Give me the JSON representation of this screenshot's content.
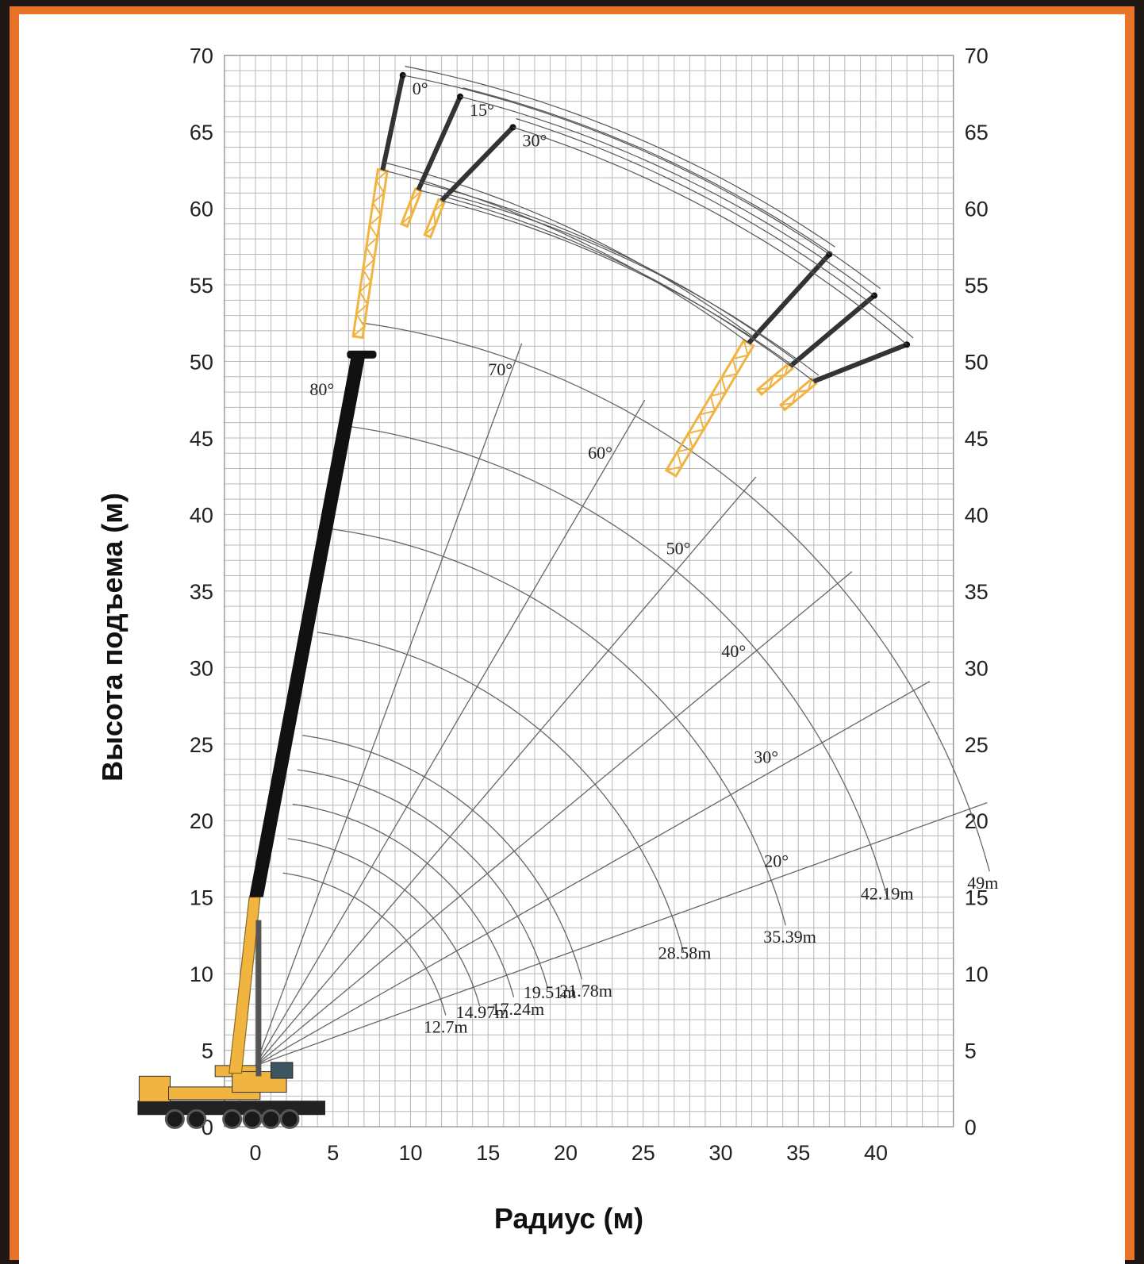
{
  "chart_data": {
    "type": "line",
    "title": "",
    "xlabel": "Радиус (м)",
    "ylabel": "Высота подъема (м)",
    "xlim": [
      -2,
      45
    ],
    "ylim": [
      0,
      70
    ],
    "x_ticks": [
      "0",
      "5",
      "10",
      "15",
      "20",
      "25",
      "30",
      "35",
      "40"
    ],
    "y_ticks": [
      "0",
      "5",
      "10",
      "15",
      "20",
      "25",
      "30",
      "35",
      "40",
      "45",
      "50",
      "55",
      "60",
      "65",
      "70"
    ],
    "grid": true,
    "pivot": [
      0,
      4
    ],
    "boom_lengths": [
      {
        "label": "12.7m",
        "length": 12.7
      },
      {
        "label": "14.97m",
        "length": 14.97
      },
      {
        "label": "17.24m",
        "length": 17.24
      },
      {
        "label": "19.51m",
        "length": 19.51
      },
      {
        "label": "21.78m",
        "length": 21.78
      },
      {
        "label": "28.58m",
        "length": 28.58
      },
      {
        "label": "35.39m",
        "length": 35.39
      },
      {
        "label": "42.19m",
        "length": 42.19
      },
      {
        "label": "49m",
        "length": 49
      }
    ],
    "boom_angles": [
      {
        "label": "20°",
        "deg": 20
      },
      {
        "label": "30°",
        "deg": 30
      },
      {
        "label": "40°",
        "deg": 40
      },
      {
        "label": "50°",
        "deg": 50
      },
      {
        "label": "60°",
        "deg": 60
      },
      {
        "label": "70°",
        "deg": 70
      },
      {
        "label": "80°",
        "deg": 80
      }
    ],
    "main_boom_tip": [
      6.5,
      50.5
    ],
    "jib_base_high": [
      8.2,
      62.5
    ],
    "jib_base_low": [
      31.8,
      51.2
    ],
    "jib_offset_angles": [
      {
        "label": "0°",
        "tip": [
          9.5,
          68.7
        ],
        "base_high": [
          8.2,
          62.5
        ],
        "base_low": [
          31.8,
          51.2
        ],
        "low_tip": [
          37.0,
          57.0
        ]
      },
      {
        "label": "15°",
        "tip": [
          13.2,
          67.3
        ],
        "base_high": [
          10.5,
          61.2
        ],
        "base_low": [
          34.5,
          49.7
        ],
        "low_tip": [
          39.9,
          54.3
        ]
      },
      {
        "label": "30°",
        "tip": [
          16.6,
          65.3
        ],
        "base_high": [
          12.0,
          60.5
        ],
        "base_low": [
          36.0,
          48.7
        ],
        "low_tip": [
          42.0,
          51.1
        ]
      }
    ],
    "colors": {
      "main_boom": "#111111",
      "lattice_jib": "#f2b440",
      "crane_body": "#f2b440",
      "grid": "#b8b8b8",
      "frame": "#e8742a"
    }
  }
}
